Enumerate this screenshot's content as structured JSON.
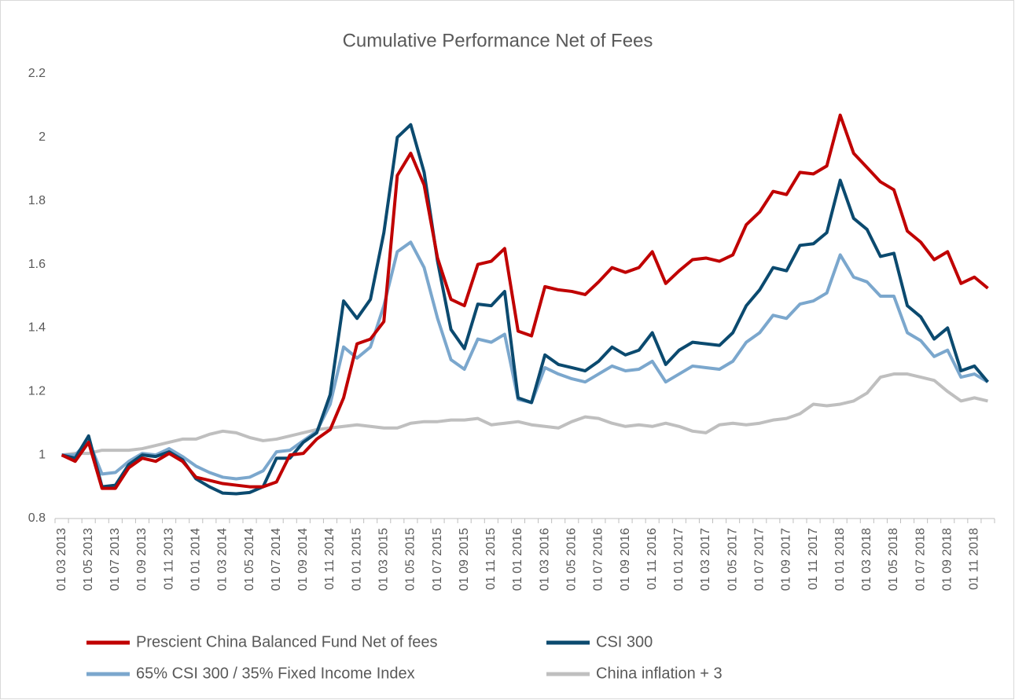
{
  "chart_data": {
    "type": "line",
    "title": "Cumulative Performance Net of Fees",
    "categories": [
      "01 03 2013",
      null,
      "01 05 2013",
      null,
      "01 07 2013",
      null,
      "01 09 2013",
      null,
      "01 11 2013",
      null,
      "01 01 2014",
      null,
      "01 03 2014",
      null,
      "01 05 2014",
      null,
      "01 07 2014",
      null,
      "01 09 2014",
      null,
      "01 11 2014",
      null,
      "01 01 2015",
      null,
      "01 03 2015",
      null,
      "01 05 2015",
      null,
      "01 07 2015",
      null,
      "01 09 2015",
      null,
      "01 11 2015",
      null,
      "01 01 2016",
      null,
      "01 03 2016",
      null,
      "01 05 2016",
      null,
      "01 07 2016",
      null,
      "01 09 2016",
      null,
      "01 11 2016",
      null,
      "01 01 2017",
      null,
      "01 03 2017",
      null,
      "01 05 2017",
      null,
      "01 07 2017",
      null,
      "01 09 2017",
      null,
      "01 11 2017",
      null,
      "01 01 2018",
      null,
      "01 03 2018",
      null,
      "01 05 2018",
      null,
      "01 07 2018",
      null,
      "01 09 2018",
      null,
      "01 11 2018",
      null
    ],
    "series": [
      {
        "name": "Prescient China Balanced Fund Net of fees",
        "color": "#c00000",
        "values": [
          1.0,
          0.98,
          1.04,
          0.895,
          0.895,
          0.96,
          0.99,
          0.98,
          1.005,
          0.98,
          0.93,
          0.92,
          0.91,
          0.905,
          0.9,
          0.9,
          0.915,
          1.0,
          1.005,
          1.05,
          1.08,
          1.18,
          1.35,
          1.365,
          1.42,
          1.88,
          1.95,
          1.85,
          1.62,
          1.49,
          1.47,
          1.6,
          1.61,
          1.65,
          1.39,
          1.375,
          1.53,
          1.52,
          1.515,
          1.505,
          1.545,
          1.59,
          1.575,
          1.59,
          1.64,
          1.54,
          1.58,
          1.615,
          1.62,
          1.61,
          1.63,
          1.725,
          1.765,
          1.83,
          1.82,
          1.89,
          1.885,
          1.91,
          2.07,
          1.95,
          1.905,
          1.86,
          1.835,
          1.705,
          1.67,
          1.615,
          1.64,
          1.54,
          1.56,
          1.525
        ]
      },
      {
        "name": "CSI 300",
        "color": "#0b4a6f",
        "values": [
          1.0,
          0.99,
          1.06,
          0.9,
          0.905,
          0.97,
          1.0,
          0.995,
          1.01,
          0.985,
          0.925,
          0.9,
          0.88,
          0.878,
          0.882,
          0.9,
          0.99,
          0.99,
          1.04,
          1.07,
          1.19,
          1.485,
          1.43,
          1.49,
          1.7,
          2.0,
          2.04,
          1.89,
          1.61,
          1.395,
          1.335,
          1.475,
          1.47,
          1.515,
          1.18,
          1.165,
          1.315,
          1.285,
          1.275,
          1.265,
          1.295,
          1.34,
          1.315,
          1.33,
          1.385,
          1.285,
          1.33,
          1.355,
          1.35,
          1.345,
          1.385,
          1.47,
          1.52,
          1.59,
          1.58,
          1.66,
          1.665,
          1.7,
          1.865,
          1.745,
          1.71,
          1.625,
          1.635,
          1.47,
          1.435,
          1.365,
          1.4,
          1.265,
          1.28,
          1.23
        ]
      },
      {
        "name": "65% CSI 300 / 35% Fixed Income Index",
        "color": "#7ba7cd",
        "values": [
          1.0,
          1.0,
          1.045,
          0.94,
          0.945,
          0.98,
          1.005,
          1.0,
          1.02,
          0.995,
          0.965,
          0.945,
          0.93,
          0.925,
          0.93,
          0.95,
          1.01,
          1.015,
          1.045,
          1.075,
          1.16,
          1.34,
          1.305,
          1.34,
          1.47,
          1.64,
          1.67,
          1.59,
          1.43,
          1.3,
          1.27,
          1.365,
          1.355,
          1.38,
          1.175,
          1.165,
          1.275,
          1.255,
          1.24,
          1.23,
          1.255,
          1.28,
          1.265,
          1.27,
          1.295,
          1.23,
          1.255,
          1.28,
          1.275,
          1.27,
          1.295,
          1.355,
          1.385,
          1.44,
          1.43,
          1.475,
          1.485,
          1.51,
          1.63,
          1.56,
          1.545,
          1.5,
          1.5,
          1.385,
          1.36,
          1.31,
          1.33,
          1.245,
          1.255,
          1.23
        ]
      },
      {
        "name": "China inflation + 3",
        "color": "#bfbfbf",
        "values": [
          1.0,
          1.005,
          1.005,
          1.015,
          1.015,
          1.015,
          1.02,
          1.03,
          1.04,
          1.05,
          1.05,
          1.065,
          1.075,
          1.07,
          1.055,
          1.045,
          1.05,
          1.06,
          1.07,
          1.08,
          1.085,
          1.09,
          1.095,
          1.09,
          1.085,
          1.085,
          1.1,
          1.105,
          1.105,
          1.11,
          1.11,
          1.115,
          1.095,
          1.1,
          1.105,
          1.095,
          1.09,
          1.085,
          1.105,
          1.12,
          1.115,
          1.1,
          1.09,
          1.095,
          1.09,
          1.1,
          1.09,
          1.075,
          1.07,
          1.095,
          1.1,
          1.095,
          1.1,
          1.11,
          1.115,
          1.13,
          1.16,
          1.155,
          1.16,
          1.17,
          1.195,
          1.245,
          1.255,
          1.255,
          1.245,
          1.235,
          1.2,
          1.17,
          1.18,
          1.17
        ]
      }
    ],
    "ylim": [
      0.8,
      2.2
    ],
    "yticks": [
      0.8,
      1,
      1.2,
      1.4,
      1.6,
      1.8,
      2,
      2.2
    ],
    "grid": false,
    "legend": "bottom"
  }
}
